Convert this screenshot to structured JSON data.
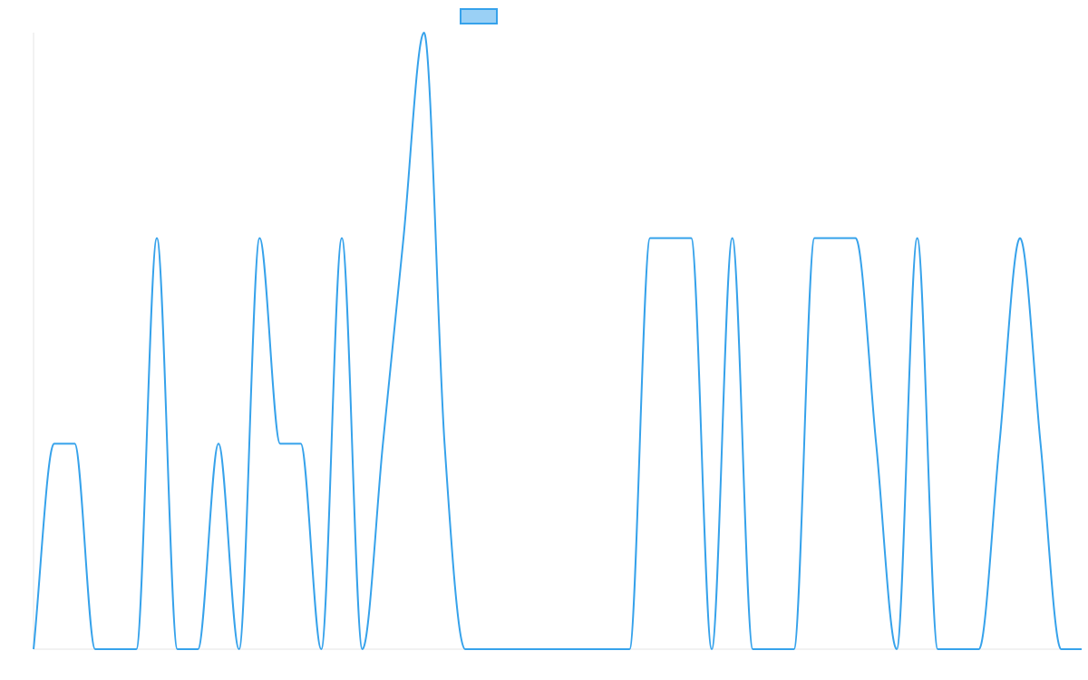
{
  "chart_data": {
    "type": "line",
    "categories": [
      null,
      null,
      null,
      null,
      null,
      null,
      null,
      null,
      null,
      null,
      null,
      null,
      null,
      null,
      null,
      null,
      null,
      null,
      null,
      null,
      null,
      null,
      null,
      null,
      null,
      null,
      null,
      null,
      null,
      null,
      null,
      null,
      null,
      null,
      null,
      null,
      null,
      null,
      null,
      null,
      null,
      null,
      null,
      null,
      null,
      null,
      null,
      null,
      null,
      null,
      null,
      null
    ],
    "series": [
      {
        "color": "#36a2eb",
        "fill": "#9ad0f5",
        "values": [
          0,
          1,
          1,
          0,
          0,
          0,
          2,
          0,
          0,
          1,
          0,
          2,
          1,
          1,
          0,
          2,
          0,
          1,
          2,
          3,
          1,
          0,
          0,
          0,
          0,
          0,
          0,
          0,
          0,
          0,
          2,
          2,
          2,
          0,
          2,
          0,
          0,
          0,
          2,
          2,
          2,
          1,
          0,
          2,
          0,
          0,
          0,
          1,
          2,
          1,
          0,
          0
        ]
      }
    ],
    "ylim": [
      0,
      3
    ]
  }
}
